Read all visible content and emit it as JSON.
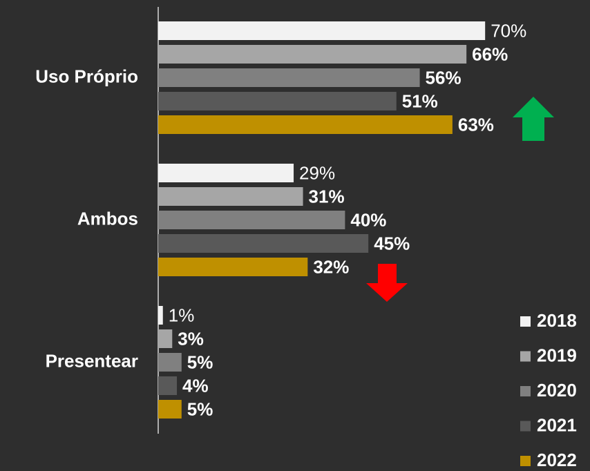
{
  "chart_data": {
    "type": "hbar",
    "categories": [
      "Uso Próprio",
      "Ambos",
      "Presentear"
    ],
    "series": [
      {
        "name": "2018",
        "color": "#f2f2f2",
        "values": [
          70,
          29,
          1
        ],
        "value_labels": [
          "70%",
          "29%",
          "1%"
        ]
      },
      {
        "name": "2019",
        "color": "#a6a6a6",
        "values": [
          66,
          31,
          3
        ],
        "value_labels": [
          "66%",
          "31%",
          "3%"
        ]
      },
      {
        "name": "2020",
        "color": "#808080",
        "values": [
          56,
          40,
          5
        ],
        "value_labels": [
          "56%",
          "40%",
          "5%"
        ]
      },
      {
        "name": "2021",
        "color": "#595959",
        "values": [
          51,
          45,
          4
        ],
        "value_labels": [
          "51%",
          "45%",
          "4%"
        ]
      },
      {
        "name": "2022",
        "color": "#bf9000",
        "values": [
          63,
          32,
          5
        ],
        "value_labels": [
          "63%",
          "32%",
          "5%"
        ]
      }
    ],
    "xlim": [
      0,
      100
    ]
  }
}
